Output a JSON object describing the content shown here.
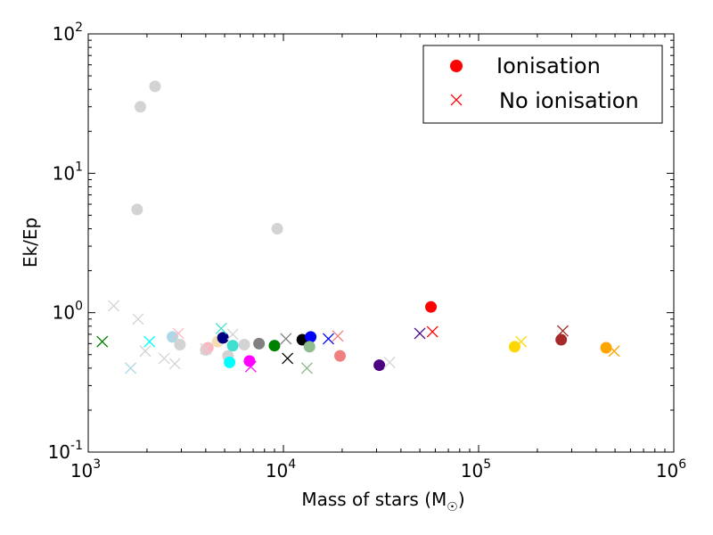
{
  "chart_data": {
    "type": "scatter",
    "xlabel": "Mass of stars (M",
    "xlabel_subscript": "☉",
    "xlabel_close": ")",
    "ylabel": "Ek/Ep",
    "xscale": "log",
    "yscale": "log",
    "xlim": [
      1000,
      1000000
    ],
    "ylim": [
      0.1,
      100
    ],
    "x_ticks": [
      {
        "value": 1000,
        "base": "10",
        "exp": "3"
      },
      {
        "value": 10000,
        "base": "10",
        "exp": "4"
      },
      {
        "value": 100000,
        "base": "10",
        "exp": "5"
      },
      {
        "value": 1000000,
        "base": "10",
        "exp": "6"
      }
    ],
    "y_ticks": [
      {
        "value": 0.1,
        "base": "10",
        "exp": "-1"
      },
      {
        "value": 1,
        "base": "10",
        "exp": "0"
      },
      {
        "value": 10,
        "base": "10",
        "exp": "1"
      },
      {
        "value": 100,
        "base": "10",
        "exp": "2"
      }
    ],
    "legend": {
      "placement": "top-right",
      "entries": [
        {
          "label": "Ionisation",
          "marker": "circle",
          "color": "#ff0000"
        },
        {
          "label": "No ionisation",
          "marker": "x",
          "color": "#ff0000"
        }
      ]
    },
    "series": [
      {
        "name": "Ionisation",
        "marker": "circle",
        "points": [
          {
            "x": 1850,
            "y": 30,
            "color": "#d3d3d3"
          },
          {
            "x": 2200,
            "y": 42,
            "color": "#d3d3d3"
          },
          {
            "x": 1780,
            "y": 5.5,
            "color": "#d3d3d3"
          },
          {
            "x": 9300,
            "y": 4.0,
            "color": "#d3d3d3"
          },
          {
            "x": 2700,
            "y": 0.67,
            "color": "#add8e6"
          },
          {
            "x": 2950,
            "y": 0.59,
            "color": "#d3d3d3"
          },
          {
            "x": 4000,
            "y": 0.54,
            "color": "#d3d3d3"
          },
          {
            "x": 4100,
            "y": 0.56,
            "color": "#ffb6c1"
          },
          {
            "x": 4600,
            "y": 0.62,
            "color": "#f5deb3"
          },
          {
            "x": 4900,
            "y": 0.66,
            "color": "#000080"
          },
          {
            "x": 5200,
            "y": 0.49,
            "color": "#d3d3d3"
          },
          {
            "x": 5300,
            "y": 0.44,
            "color": "#00ffff"
          },
          {
            "x": 5500,
            "y": 0.58,
            "color": "#40e0d0"
          },
          {
            "x": 6300,
            "y": 0.59,
            "color": "#d3d3d3"
          },
          {
            "x": 6700,
            "y": 0.45,
            "color": "#ff00ff"
          },
          {
            "x": 7500,
            "y": 0.6,
            "color": "#808080"
          },
          {
            "x": 9000,
            "y": 0.58,
            "color": "#008000"
          },
          {
            "x": 12500,
            "y": 0.64,
            "color": "#000000"
          },
          {
            "x": 13800,
            "y": 0.67,
            "color": "#0000ff"
          },
          {
            "x": 13600,
            "y": 0.57,
            "color": "#8fbc8f"
          },
          {
            "x": 19500,
            "y": 0.49,
            "color": "#f08080"
          },
          {
            "x": 31000,
            "y": 0.42,
            "color": "#4b0082"
          },
          {
            "x": 57000,
            "y": 1.1,
            "color": "#ff0000"
          },
          {
            "x": 153000,
            "y": 0.57,
            "color": "#ffd700"
          },
          {
            "x": 265000,
            "y": 0.64,
            "color": "#a52a2a"
          },
          {
            "x": 450000,
            "y": 0.56,
            "color": "#ffa500"
          }
        ]
      },
      {
        "name": "No ionisation",
        "marker": "x",
        "points": [
          {
            "x": 1180,
            "y": 0.62,
            "color": "#008000"
          },
          {
            "x": 1350,
            "y": 1.12,
            "color": "#d3d3d3"
          },
          {
            "x": 1650,
            "y": 0.4,
            "color": "#add8e6"
          },
          {
            "x": 1800,
            "y": 0.9,
            "color": "#d3d3d3"
          },
          {
            "x": 1960,
            "y": 0.53,
            "color": "#d3d3d3"
          },
          {
            "x": 2060,
            "y": 0.62,
            "color": "#00ffff"
          },
          {
            "x": 2450,
            "y": 0.47,
            "color": "#d3d3d3"
          },
          {
            "x": 2780,
            "y": 0.43,
            "color": "#d3d3d3"
          },
          {
            "x": 2900,
            "y": 0.71,
            "color": "#ffb6c1"
          },
          {
            "x": 4000,
            "y": 0.55,
            "color": "#d3d3d3"
          },
          {
            "x": 4800,
            "y": 0.77,
            "color": "#40e0d0"
          },
          {
            "x": 5500,
            "y": 0.7,
            "color": "#d3d3d3"
          },
          {
            "x": 6800,
            "y": 0.41,
            "color": "#ff00ff"
          },
          {
            "x": 10300,
            "y": 0.65,
            "color": "#808080"
          },
          {
            "x": 10500,
            "y": 0.47,
            "color": "#000000"
          },
          {
            "x": 13200,
            "y": 0.4,
            "color": "#8fbc8f"
          },
          {
            "x": 17000,
            "y": 0.65,
            "color": "#0000ff"
          },
          {
            "x": 19000,
            "y": 0.68,
            "color": "#f08080"
          },
          {
            "x": 35000,
            "y": 0.44,
            "color": "#d3d3d3"
          },
          {
            "x": 50000,
            "y": 0.71,
            "color": "#4b0082"
          },
          {
            "x": 58000,
            "y": 0.73,
            "color": "#ff0000"
          },
          {
            "x": 165000,
            "y": 0.62,
            "color": "#ffd700"
          },
          {
            "x": 270000,
            "y": 0.74,
            "color": "#a52a2a"
          },
          {
            "x": 495000,
            "y": 0.53,
            "color": "#ffa500"
          }
        ]
      }
    ]
  }
}
